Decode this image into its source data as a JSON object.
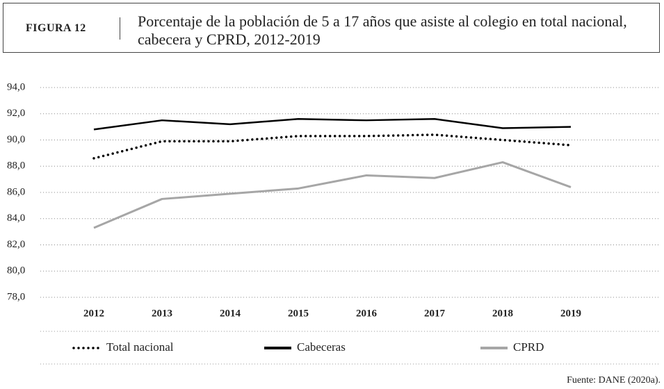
{
  "header": {
    "label": "FIGURA 12",
    "title": "Porcentaje de la población de 5 a 17 años que asiste al colegio en total nacional, cabecera y CPRD, 2012-2019"
  },
  "chart_data": {
    "type": "line",
    "categories": [
      "2012",
      "2013",
      "2014",
      "2015",
      "2016",
      "2017",
      "2018",
      "2019"
    ],
    "series": [
      {
        "name": "Total nacional",
        "color": "#000000",
        "style": "dotted",
        "values": [
          88.6,
          89.9,
          89.9,
          90.3,
          90.3,
          90.4,
          90.0,
          89.6
        ]
      },
      {
        "name": "Cabeceras",
        "color": "#000000",
        "style": "solid",
        "values": [
          90.8,
          91.5,
          91.2,
          91.6,
          91.5,
          91.6,
          90.9,
          91.0
        ]
      },
      {
        "name": "CPRD",
        "color": "#a6a6a6",
        "style": "solid",
        "values": [
          83.3,
          85.5,
          85.9,
          86.3,
          87.3,
          87.1,
          88.3,
          86.4
        ]
      }
    ],
    "ylim": [
      78,
      94
    ],
    "yticks": [
      {
        "value": 78,
        "label": "78,0"
      },
      {
        "value": 80,
        "label": "80,0"
      },
      {
        "value": 82,
        "label": "82,0"
      },
      {
        "value": 84,
        "label": "84,0"
      },
      {
        "value": 86,
        "label": "86,0"
      },
      {
        "value": 88,
        "label": "88,0"
      },
      {
        "value": 90,
        "label": "90,0"
      },
      {
        "value": 92,
        "label": "92,0"
      },
      {
        "value": 94,
        "label": "94,0"
      }
    ],
    "grid": true,
    "legend": "bottom"
  },
  "source": "Fuente: DANE (2020a)."
}
